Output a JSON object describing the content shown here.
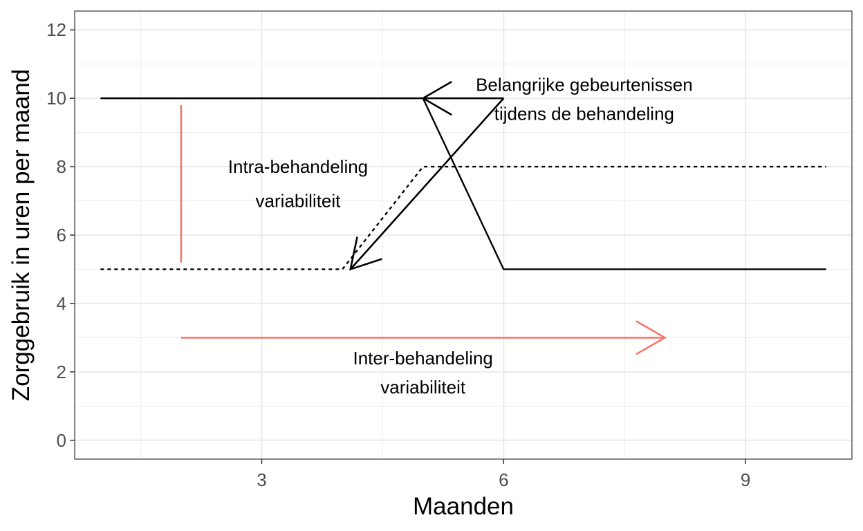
{
  "chart_data": {
    "type": "line",
    "xlabel": "Maanden",
    "ylabel": "Zorggebruik in uren per maand",
    "xlim": [
      0.68,
      10.32
    ],
    "ylim": [
      -0.55,
      12.55
    ],
    "x_ticks": [
      3,
      6,
      9
    ],
    "x_tick_labels": [
      "3",
      "6",
      "9"
    ],
    "x_minor_ticks": [
      1.5,
      4.5,
      7.5
    ],
    "y_ticks": [
      0,
      2,
      4,
      6,
      8,
      10,
      12
    ],
    "y_tick_labels": [
      "0",
      "2",
      "4",
      "6",
      "8",
      "10",
      "12"
    ],
    "y_minor_ticks": [
      1,
      3,
      5,
      7,
      9,
      11
    ],
    "grid": true,
    "series": [
      {
        "style": "solid",
        "color": "#000000",
        "x": [
          1,
          5,
          6,
          10
        ],
        "y": [
          10,
          10,
          5,
          5
        ]
      },
      {
        "style": "dotted",
        "color": "#000000",
        "x": [
          1,
          4,
          5,
          10
        ],
        "y": [
          5,
          5,
          8,
          8
        ]
      }
    ],
    "annotations": [
      {
        "kind": "segment",
        "color": "#F8766D",
        "x": [
          2,
          2
        ],
        "y": [
          5.2,
          9.8
        ]
      },
      {
        "kind": "arrow",
        "color": "#F8766D",
        "x": [
          2,
          8
        ],
        "y": [
          3,
          3
        ]
      },
      {
        "kind": "arrow",
        "color": "#000000",
        "x": [
          6,
          4.1
        ],
        "y": [
          10,
          5
        ]
      },
      {
        "kind": "arrow",
        "color": "#000000",
        "x": [
          6,
          5
        ],
        "y": [
          10,
          10
        ]
      },
      {
        "kind": "text",
        "lines": [
          "Intra-behandeling",
          "variabiliteit"
        ],
        "x": 3.45,
        "y": [
          8,
          7
        ]
      },
      {
        "kind": "text",
        "lines": [
          "Inter-behandeling",
          "variabiliteit"
        ],
        "x": 5.0,
        "y": [
          2.4,
          1.55
        ]
      },
      {
        "kind": "text",
        "lines": [
          "Belangrijke gebeurtenissen",
          "tijdens de behandeling"
        ],
        "x": 7.0,
        "y": [
          10.4,
          9.55
        ]
      }
    ]
  },
  "colors": {
    "panel_border": "#333333",
    "grid": "#ebebeb",
    "tick_text": "#4d4d4d",
    "accent": "#F8766D"
  }
}
